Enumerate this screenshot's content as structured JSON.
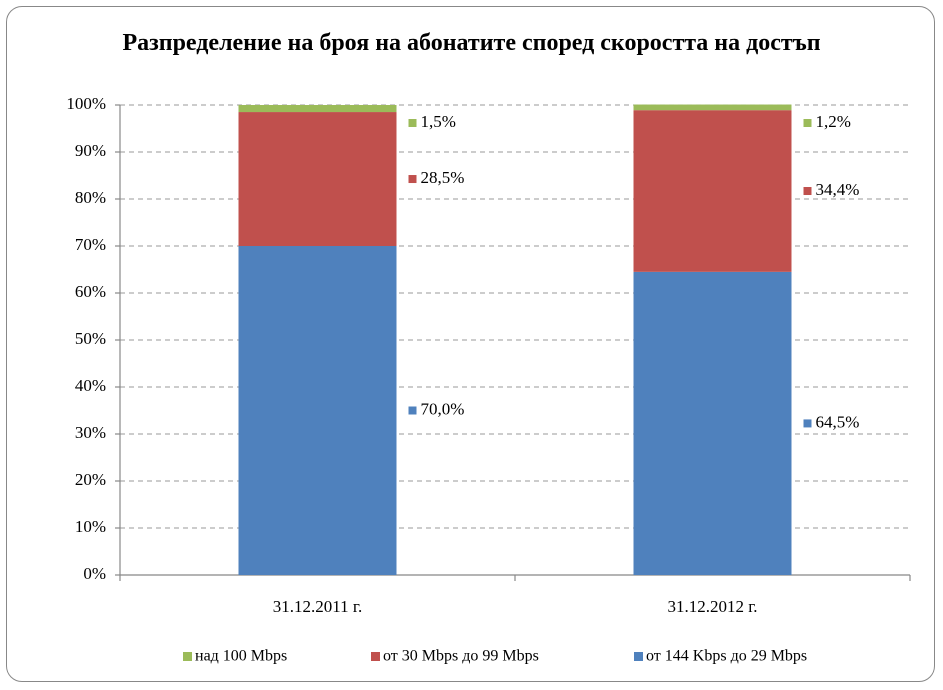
{
  "chart_data": {
    "type": "stacked_bar",
    "title": "Разпределение на броя на абонатите според скоростта на достъп",
    "categories": [
      "31.12.2011 г.",
      "31.12.2012 г."
    ],
    "series": [
      {
        "name": "от 144 Kbps до 29 Mbps",
        "color": "#4f81bd",
        "values": [
          70.0,
          64.5
        ],
        "value_labels": [
          "70,0%",
          "64,5%"
        ]
      },
      {
        "name": "от 30 Mbps до 99 Mbps",
        "color": "#c0504d",
        "values": [
          28.5,
          34.4
        ],
        "value_labels": [
          "28,5%",
          "34,4%"
        ]
      },
      {
        "name": "над 100 Mbps",
        "color": "#9bbb59",
        "values": [
          1.5,
          1.2
        ],
        "value_labels": [
          "1,5%",
          "1,2%"
        ]
      }
    ],
    "ylim": [
      0,
      100
    ],
    "yticks": [
      {
        "value": 0,
        "label": "0%"
      },
      {
        "value": 10,
        "label": "10%"
      },
      {
        "value": 20,
        "label": "20%"
      },
      {
        "value": 30,
        "label": "30%"
      },
      {
        "value": 40,
        "label": "40%"
      },
      {
        "value": 50,
        "label": "50%"
      },
      {
        "value": 60,
        "label": "60%"
      },
      {
        "value": 70,
        "label": "70%"
      },
      {
        "value": 80,
        "label": "80%"
      },
      {
        "value": 90,
        "label": "90%"
      },
      {
        "value": 100,
        "label": "100%"
      }
    ],
    "grid": true,
    "legend": "bottom"
  }
}
